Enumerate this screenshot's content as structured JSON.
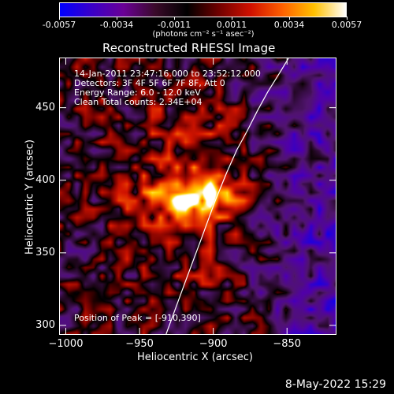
{
  "colorbar": {
    "ticks": [
      "-0.0057",
      "-0.0034",
      "-0.0011",
      "0.0011",
      "0.0034",
      "0.0057"
    ],
    "tick_values": [
      -0.0057,
      -0.0034,
      -0.0011,
      0.0011,
      0.0034,
      0.0057
    ],
    "unit_label": "(photons cm⁻² s⁻¹ asec⁻²)",
    "colors": [
      "#0000ff",
      "#3a00c8",
      "#6a0096",
      "#3a0a2a",
      "#000000",
      "#700000",
      "#d01000",
      "#ff6000",
      "#ffc000",
      "#ffffff"
    ]
  },
  "title": "Reconstructed RHESSI Image",
  "info": {
    "line1": "14-Jan-2011 23:47:16.000 to 23:52:12.000",
    "line2": "Detectors: 3F 4F 5F 6F 7F 8F, Att 0",
    "line3": "Energy Range: 6.0 - 12.0 keV",
    "line4": "Clean     Total counts: 2.34E+04"
  },
  "peak_text": "Position of Peak = [-910,390]",
  "chart_data": {
    "type": "heatmap",
    "title": "Reconstructed RHESSI Image",
    "xlabel": "Heliocentric X (arcsec)",
    "ylabel": "Heliocentric Y (arcsec)",
    "xlim": [
      -1004,
      -817
    ],
    "ylim": [
      294,
      484
    ],
    "x_ticks": [
      -1000,
      -950,
      -900,
      -850
    ],
    "x_tick_labels": [
      "−1000",
      "−950",
      "−900",
      "−850"
    ],
    "y_ticks": [
      300,
      350,
      400,
      450
    ],
    "y_tick_labels": [
      "300",
      "350",
      "400",
      "450"
    ],
    "peak": [
      -910,
      390
    ],
    "limb_curve_x": [
      -932,
      -919,
      -908,
      -899,
      -891,
      -884,
      -877,
      -870,
      -863,
      -855,
      -849
    ],
    "limb_curve_y": [
      294,
      330,
      360,
      385,
      405,
      421,
      434,
      448,
      461,
      474,
      484
    ],
    "color_range": [
      -0.0057,
      0.0057
    ]
  },
  "footer": {
    "date": "8-May-2022 15:29"
  }
}
